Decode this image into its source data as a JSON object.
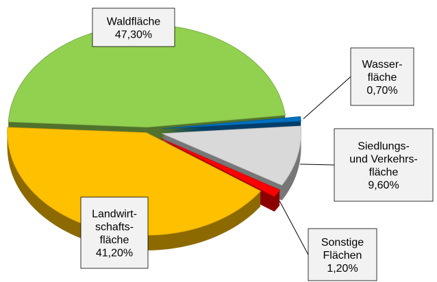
{
  "chart_data": {
    "type": "pie",
    "categories": [
      "Waldfläche",
      "Wasser-\nfläche",
      "Siedlungs-\nund Verkehrs-\nfläche",
      "Sonstige\nFlächen",
      "Landwirt-\nschafts-\nfläche"
    ],
    "values": [
      47.3,
      0.7,
      9.6,
      1.2,
      41.2
    ],
    "value_labels": [
      "47,30%",
      "0,70%",
      "9,60%",
      "1,20%",
      "41,20%"
    ],
    "colors": [
      "#92d050",
      "#0070c0",
      "#d9d9d9",
      "#ff0000",
      "#ffc000"
    ]
  }
}
